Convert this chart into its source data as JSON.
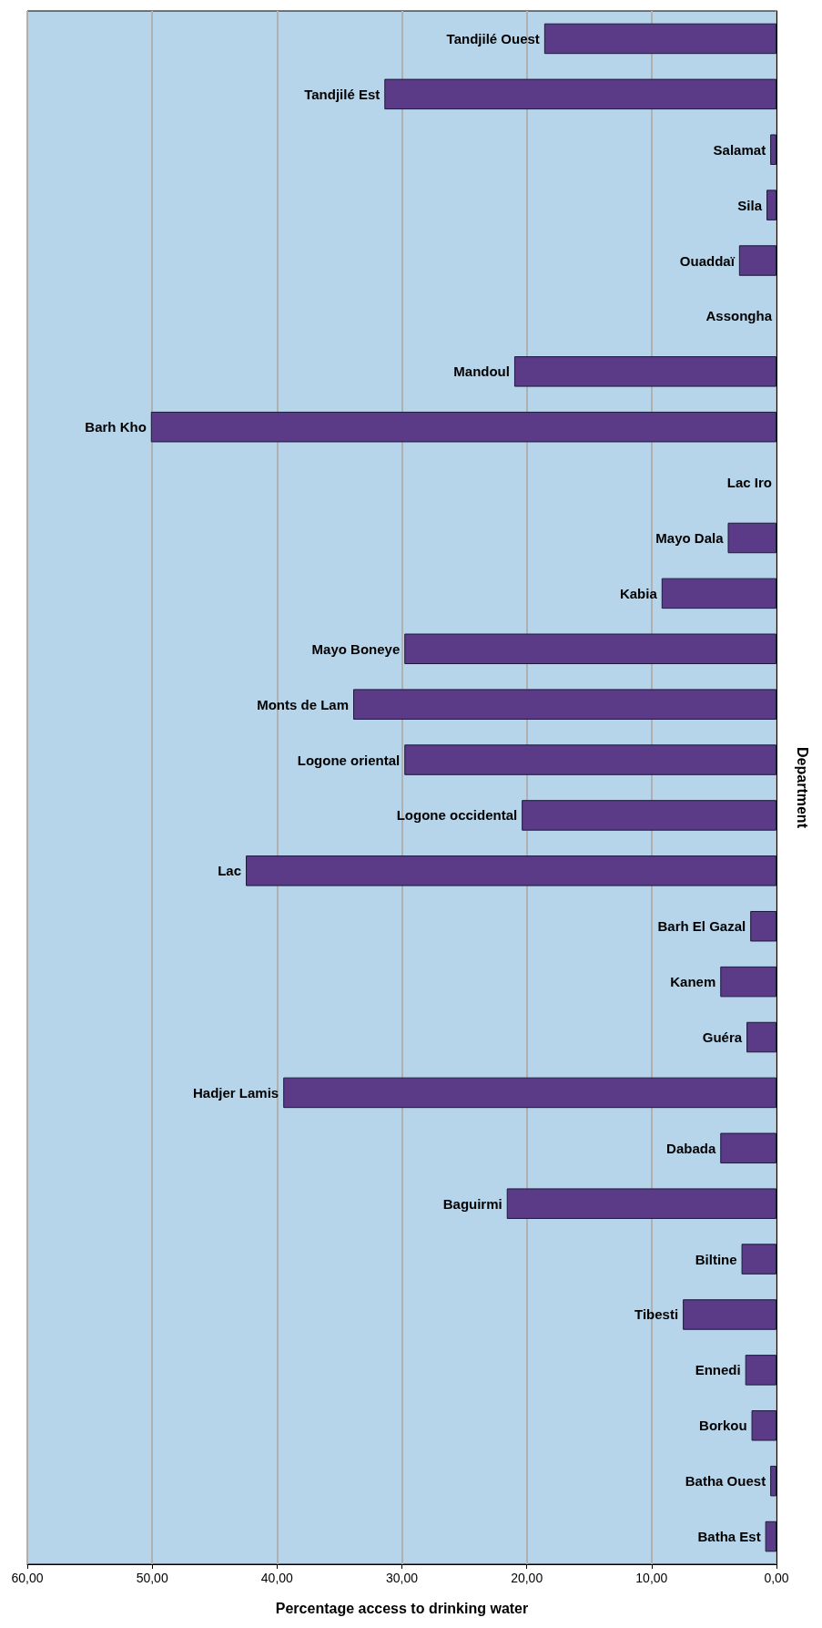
{
  "chart_data": {
    "type": "bar",
    "orientation": "horizontal",
    "xlabel": "Percentage access to drinking water",
    "ylabel": "Department",
    "categories": [
      "Tandjilé Ouest",
      "Tandjilé Est",
      "Salamat",
      "Sila",
      "Ouaddaï",
      "Assongha",
      "Mandoul",
      "Barh Kho",
      "Lac Iro",
      "Mayo Dala",
      "Kabia",
      "Mayo Boneye",
      "Monts de Lam",
      "Logone oriental",
      "Logone occidental",
      "Lac",
      "Barh El Gazal",
      "Kanem",
      "Guéra",
      "Hadjer Lamis",
      "Dabada",
      "Baguirmi",
      "Biltine",
      "Tibesti",
      "Ennedi",
      "Borkou",
      "Batha Ouest",
      "Batha Est"
    ],
    "values": [
      18.6,
      31.4,
      0.5,
      0.8,
      3.0,
      0,
      21.0,
      50.1,
      0,
      3.9,
      9.2,
      29.8,
      33.9,
      29.8,
      20.4,
      42.5,
      2.1,
      4.5,
      2.4,
      39.5,
      4.5,
      21.6,
      2.8,
      7.5,
      2.5,
      2.0,
      0.5,
      0.9
    ],
    "color": "#5b3a88",
    "xlim": [
      60,
      0
    ],
    "xticks": [
      {
        "value": 60,
        "label": "60,00"
      },
      {
        "value": 50,
        "label": "50,00"
      },
      {
        "value": 40,
        "label": "40,00"
      },
      {
        "value": 30,
        "label": "30,00"
      },
      {
        "value": 20,
        "label": "20,00"
      },
      {
        "value": 10,
        "label": "10,00"
      },
      {
        "value": 0,
        "label": "0,00"
      }
    ],
    "grid": "x"
  }
}
